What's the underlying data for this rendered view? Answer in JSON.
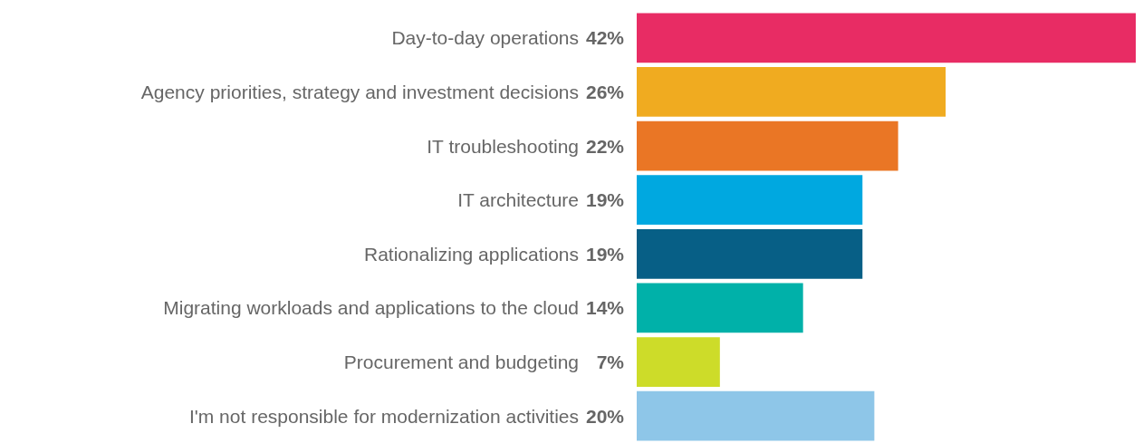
{
  "chart_data": {
    "type": "bar",
    "orientation": "horizontal",
    "categories": [
      "Day-to-day operations",
      "Agency priorities, strategy and investment decisions",
      "IT troubleshooting",
      "IT architecture",
      "Rationalizing applications",
      "Migrating workloads and applications to the cloud",
      "Procurement and budgeting",
      "I'm not responsible for modernization activities"
    ],
    "values": [
      42,
      26,
      22,
      19,
      19,
      14,
      7,
      20
    ],
    "value_labels": [
      "42%",
      "26%",
      "22%",
      "19%",
      "19%",
      "14%",
      "7%",
      "20%"
    ],
    "colors": [
      "#e82c64",
      "#f0ab20",
      "#ea7625",
      "#00a8e0",
      "#075f86",
      "#00b1a9",
      "#cddc29",
      "#8ec6e8"
    ]
  }
}
